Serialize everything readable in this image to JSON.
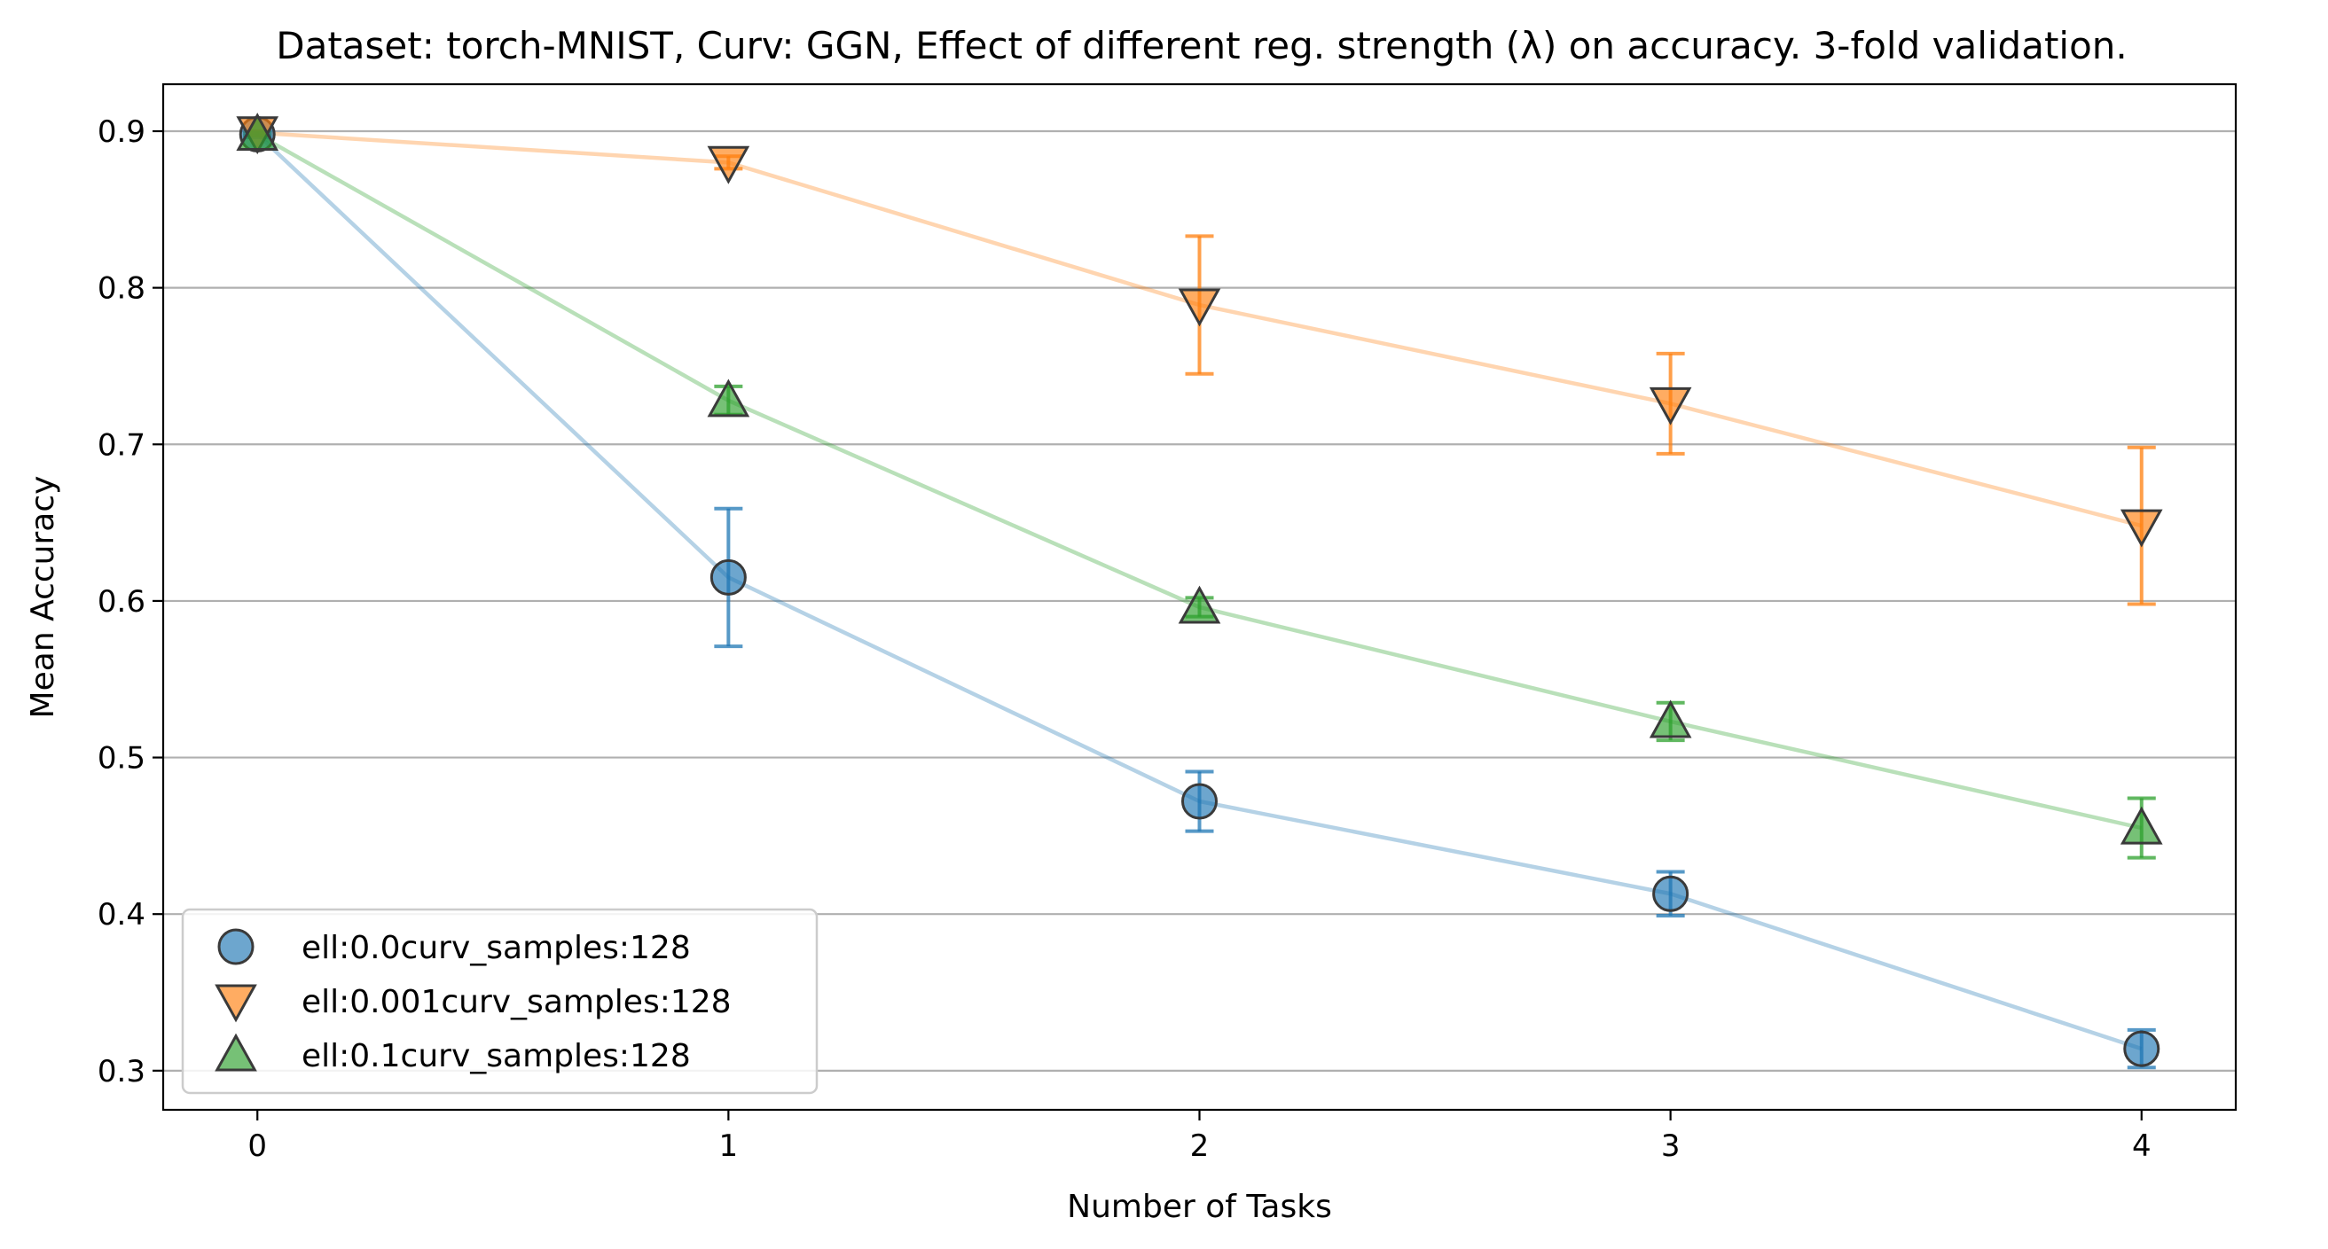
{
  "chart_data": {
    "type": "scatter",
    "title": "Dataset: torch-MNIST, Curv: GGN, Effect of different reg. strength (λ) on accuracy. 3-fold validation.",
    "xlabel": "Number of Tasks",
    "ylabel": "Mean Accuracy",
    "xlim": [
      -0.2,
      4.2
    ],
    "ylim": [
      0.275,
      0.93
    ],
    "xticks": [
      0,
      1,
      2,
      3,
      4
    ],
    "xtick_labels": [
      "0",
      "1",
      "2",
      "3",
      "4"
    ],
    "yticks": [
      0.3,
      0.4,
      0.5,
      0.6,
      0.7,
      0.8,
      0.9
    ],
    "ytick_labels": [
      "0.3",
      "0.4",
      "0.5",
      "0.6",
      "0.7",
      "0.8",
      "0.9"
    ],
    "grid": "horizontal",
    "legend_position": "lower-left",
    "x": [
      0,
      1,
      2,
      3,
      4
    ],
    "series": [
      {
        "name": "ell:0.0curv_samples:128",
        "marker": "circle",
        "color": "#1f77b4",
        "values": [
          0.898,
          0.615,
          0.472,
          0.413,
          0.314
        ],
        "errors": [
          0.002,
          0.044,
          0.019,
          0.014,
          0.012
        ]
      },
      {
        "name": "ell:0.001curv_samples:128",
        "marker": "triangle-down",
        "color": "#ff7f0e",
        "values": [
          0.899,
          0.88,
          0.789,
          0.726,
          0.648
        ],
        "errors": [
          0.001,
          0.004,
          0.044,
          0.032,
          0.05
        ]
      },
      {
        "name": "ell:0.1curv_samples:128",
        "marker": "triangle-up",
        "color": "#2ca02c",
        "values": [
          0.898,
          0.728,
          0.596,
          0.523,
          0.455
        ],
        "errors": [
          0.001,
          0.009,
          0.006,
          0.012,
          0.019
        ]
      }
    ]
  }
}
